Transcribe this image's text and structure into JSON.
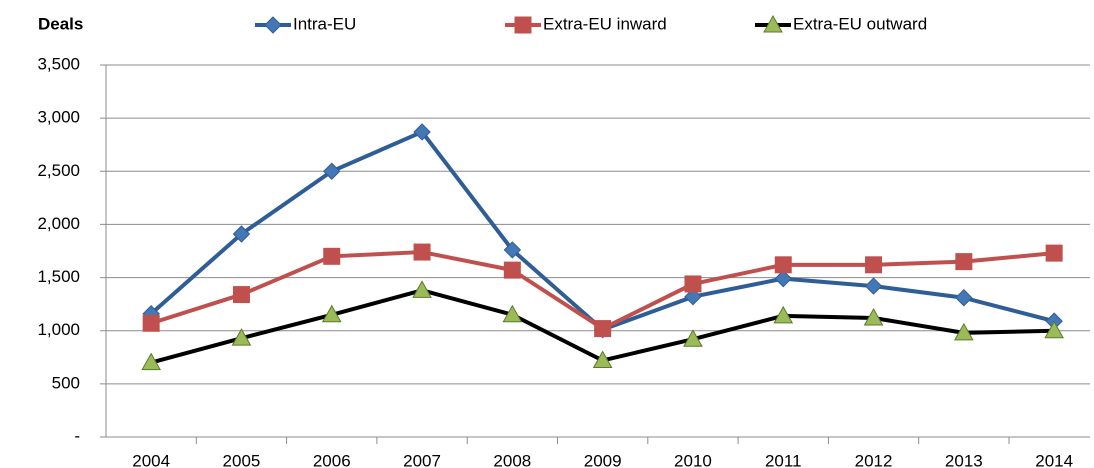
{
  "chart_data": {
    "type": "line",
    "y_label": "Deals",
    "categories": [
      "2004",
      "2005",
      "2006",
      "2007",
      "2008",
      "2009",
      "2010",
      "2011",
      "2012",
      "2013",
      "2014"
    ],
    "series": [
      {
        "name": "Intra-EU",
        "color": "#2f5d96",
        "marker_color": "#4477b6",
        "marker": "diamond",
        "values": [
          1160,
          1910,
          2500,
          2870,
          1760,
          1010,
          1320,
          1490,
          1420,
          1310,
          1090
        ]
      },
      {
        "name": "Extra-EU inward",
        "color": "#c0504d",
        "marker_color": "#c0504d",
        "marker": "square",
        "values": [
          1070,
          1340,
          1700,
          1740,
          1570,
          1020,
          1440,
          1620,
          1620,
          1650,
          1730
        ]
      },
      {
        "name": "Extra-EU outward",
        "color": "#000000",
        "marker_color": "#9bbb59",
        "marker": "triangle",
        "values": [
          700,
          930,
          1150,
          1380,
          1150,
          720,
          920,
          1140,
          1120,
          980,
          1000
        ]
      }
    ],
    "ylim": [
      0,
      3500
    ],
    "yticks": [
      {
        "value": 0,
        "label": "-"
      },
      500,
      {
        "value": 1000,
        "label": "1,000"
      },
      {
        "value": 1500,
        "label": "1,500"
      },
      {
        "value": 2000,
        "label": "2,000"
      },
      {
        "value": 2500,
        "label": "2,500"
      },
      {
        "value": 3000,
        "label": "3,000"
      },
      {
        "value": 3500,
        "label": "3,500"
      }
    ],
    "grid": true
  }
}
